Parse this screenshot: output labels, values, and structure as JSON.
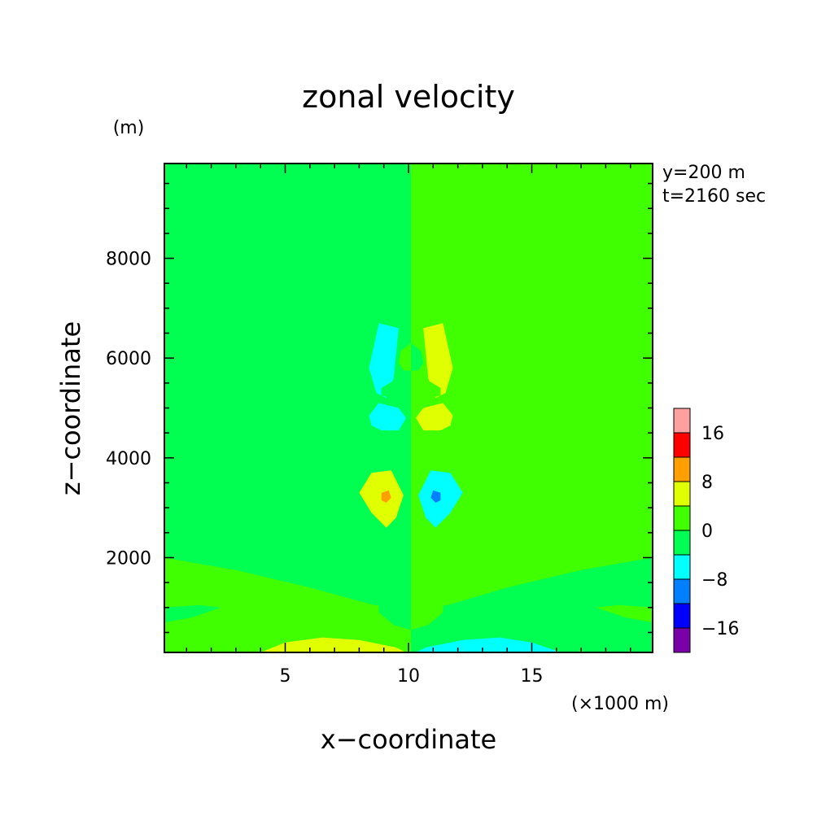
{
  "chart_data": {
    "type": "heatmap",
    "title": "zonal velocity",
    "xlabel": "x−coordinate",
    "ylabel": "z−coordinate",
    "x_units": "(×1000 m)",
    "y_units": "(m)",
    "xlim": [
      0.1,
      19.9
    ],
    "ylim": [
      100,
      9900
    ],
    "x_ticks": [
      5,
      10,
      15
    ],
    "x_tick_labels": [
      "5",
      "10",
      "15"
    ],
    "y_ticks": [
      2000,
      4000,
      6000,
      8000
    ],
    "y_tick_labels": [
      "2000",
      "4000",
      "6000",
      "8000"
    ],
    "annotations": [
      "y=200 m",
      "t=2160 sec"
    ],
    "colorbar": {
      "levels": [
        -20,
        -16,
        -12,
        -8,
        -4,
        0,
        4,
        8,
        12,
        16,
        20
      ],
      "tick_values": [
        -16,
        -8,
        0,
        8,
        16
      ],
      "tick_labels": [
        "−16",
        "−8",
        "0",
        "8",
        "16"
      ],
      "colors": [
        "#7a00a8",
        "#0000ff",
        "#0080ff",
        "#00ffff",
        "#00ff50",
        "#40ff00",
        "#e0ff00",
        "#ffa000",
        "#ff0000",
        "#ffa0a0"
      ]
    },
    "background": {
      "left_half": "0 to -4 band",
      "right_half": "0 to 4 band"
    },
    "regions": [
      {
        "band": "0 to -4",
        "points": [
          [
            0.1,
            2500
          ],
          [
            4.5,
            2300
          ],
          [
            7.8,
            3000
          ],
          [
            8.3,
            3700
          ],
          [
            8.3,
            4100
          ],
          [
            9.2,
            4300
          ],
          [
            10.1,
            4300
          ],
          [
            10.1,
            100
          ],
          [
            0.1,
            100
          ]
        ]
      },
      {
        "band": "0 to 4",
        "points": [
          [
            19.9,
            2500
          ],
          [
            15.5,
            2300
          ],
          [
            12.5,
            3000
          ],
          [
            11.9,
            3700
          ],
          [
            11.9,
            4100
          ],
          [
            10.8,
            4300
          ],
          [
            10.1,
            4300
          ],
          [
            10.1,
            100
          ],
          [
            19.9,
            100
          ]
        ]
      },
      {
        "band": "0 to 4",
        "points": [
          [
            0.1,
            2000
          ],
          [
            3,
            1750
          ],
          [
            6,
            1400
          ],
          [
            8.6,
            1050
          ],
          [
            10.1,
            950
          ],
          [
            10.1,
            100
          ],
          [
            0.1,
            100
          ]
        ]
      },
      {
        "band": "0 to -4",
        "points": [
          [
            19.9,
            2000
          ],
          [
            17,
            1750
          ],
          [
            14,
            1400
          ],
          [
            11.6,
            1050
          ],
          [
            10.1,
            950
          ],
          [
            10.1,
            100
          ],
          [
            19.9,
            100
          ]
        ]
      },
      {
        "band": "0 to -4",
        "points": [
          [
            0.1,
            1000
          ],
          [
            1.5,
            1050
          ],
          [
            2.4,
            1000
          ],
          [
            1.2,
            800
          ],
          [
            0.1,
            700
          ]
        ]
      },
      {
        "band": "0 to 4",
        "points": [
          [
            19.9,
            1000
          ],
          [
            18.5,
            1050
          ],
          [
            17.6,
            1000
          ],
          [
            18.8,
            800
          ],
          [
            19.9,
            700
          ]
        ]
      },
      {
        "band": "0 to -4",
        "points": [
          [
            9.1,
            1300
          ],
          [
            9.6,
            1900
          ],
          [
            10.1,
            2050
          ],
          [
            10.1,
            550
          ],
          [
            9.4,
            650
          ],
          [
            8.8,
            900
          ],
          [
            8.8,
            1200
          ]
        ]
      },
      {
        "band": "0 to 4",
        "points": [
          [
            11.1,
            1300
          ],
          [
            10.6,
            1900
          ],
          [
            10.1,
            2050
          ],
          [
            10.1,
            550
          ],
          [
            10.8,
            650
          ],
          [
            11.4,
            900
          ],
          [
            11.4,
            1200
          ]
        ]
      },
      {
        "band": "4 to 8",
        "points": [
          [
            4,
            100
          ],
          [
            5,
            300
          ],
          [
            6.5,
            400
          ],
          [
            8,
            350
          ],
          [
            9.5,
            200
          ],
          [
            9.9,
            100
          ]
        ]
      },
      {
        "band": "-8 to -4",
        "points": [
          [
            16.2,
            100
          ],
          [
            15,
            300
          ],
          [
            13.7,
            400
          ],
          [
            12.2,
            350
          ],
          [
            10.7,
            200
          ],
          [
            10.3,
            100
          ]
        ]
      },
      {
        "band": "4 to 8",
        "points": [
          [
            8.0,
            3300
          ],
          [
            8.5,
            3700
          ],
          [
            9.3,
            3750
          ],
          [
            9.8,
            3250
          ],
          [
            9.5,
            2800
          ],
          [
            9.1,
            2600
          ],
          [
            8.5,
            2900
          ]
        ]
      },
      {
        "band": "8 to 12",
        "points": [
          [
            8.9,
            3300
          ],
          [
            9.2,
            3350
          ],
          [
            9.3,
            3200
          ],
          [
            9.1,
            3100
          ],
          [
            8.9,
            3150
          ]
        ]
      },
      {
        "band": "-8 to -4",
        "points": [
          [
            12.2,
            3300
          ],
          [
            11.7,
            3700
          ],
          [
            10.9,
            3750
          ],
          [
            10.4,
            3250
          ],
          [
            10.7,
            2800
          ],
          [
            11.1,
            2600
          ],
          [
            11.7,
            2900
          ]
        ]
      },
      {
        "band": "-12 to -8",
        "points": [
          [
            11.3,
            3300
          ],
          [
            11.0,
            3350
          ],
          [
            10.9,
            3200
          ],
          [
            11.1,
            3100
          ],
          [
            11.3,
            3150
          ]
        ]
      },
      {
        "band": "-8 to -4",
        "points": [
          [
            8.4,
            4850
          ],
          [
            8.8,
            5100
          ],
          [
            9.6,
            5000
          ],
          [
            9.9,
            4800
          ],
          [
            9.6,
            4550
          ],
          [
            8.9,
            4550
          ],
          [
            8.5,
            4650
          ]
        ]
      },
      {
        "band": "4 to 8",
        "points": [
          [
            11.8,
            4850
          ],
          [
            11.4,
            5100
          ],
          [
            10.6,
            5000
          ],
          [
            10.3,
            4800
          ],
          [
            10.6,
            4550
          ],
          [
            11.3,
            4550
          ],
          [
            11.7,
            4650
          ]
        ]
      },
      {
        "band": "-8 to -4",
        "points": [
          [
            8.4,
            5800
          ],
          [
            8.8,
            6700
          ],
          [
            9.6,
            6600
          ],
          [
            9.4,
            5600
          ],
          [
            9.1,
            5200
          ],
          [
            8.7,
            5300
          ]
        ]
      },
      {
        "band": "4 to 8",
        "points": [
          [
            11.8,
            5800
          ],
          [
            11.4,
            6700
          ],
          [
            10.6,
            6600
          ],
          [
            10.8,
            5600
          ],
          [
            11.1,
            5200
          ],
          [
            11.5,
            5300
          ]
        ]
      },
      {
        "band": "0 to -4",
        "points": [
          [
            8.9,
            5400
          ],
          [
            9.4,
            5550
          ],
          [
            9.6,
            5350
          ],
          [
            9.3,
            5200
          ],
          [
            8.9,
            5250
          ]
        ]
      },
      {
        "band": "0 to 4",
        "points": [
          [
            11.3,
            5400
          ],
          [
            10.8,
            5550
          ],
          [
            10.6,
            5350
          ],
          [
            10.9,
            5200
          ],
          [
            11.3,
            5250
          ]
        ]
      },
      {
        "band": "0 to 4",
        "points": [
          [
            9.6,
            5900
          ],
          [
            9.7,
            6150
          ],
          [
            10.1,
            6300
          ],
          [
            10.1,
            5750
          ],
          [
            9.8,
            5750
          ]
        ]
      },
      {
        "band": "0 to -4",
        "points": [
          [
            10.6,
            5900
          ],
          [
            10.5,
            6150
          ],
          [
            10.1,
            6300
          ],
          [
            10.1,
            5750
          ],
          [
            10.4,
            5750
          ]
        ]
      }
    ],
    "grid": false,
    "legend": "colorbar at right"
  }
}
